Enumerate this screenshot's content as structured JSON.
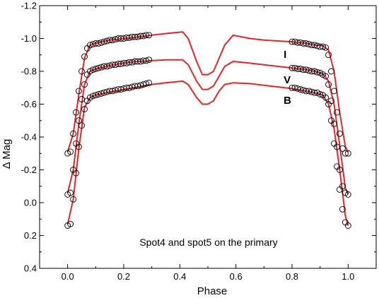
{
  "chart_data": {
    "type": "scatter",
    "title": "",
    "xlabel": "Phase",
    "ylabel": "Δ Mag",
    "xlim": [
      -0.1,
      1.1
    ],
    "ylim": [
      0.4,
      -1.2
    ],
    "y_inverted": true,
    "grid": false,
    "x_ticks": [
      0.0,
      0.2,
      0.4,
      0.6,
      0.8,
      1.0
    ],
    "x_tick_labels": [
      "0.0",
      "0.2",
      "0.4",
      "0.6",
      "0.8",
      "1.0"
    ],
    "y_ticks": [
      -1.2,
      -1.0,
      -0.8,
      -0.6,
      -0.4,
      -0.2,
      0.0,
      0.2,
      0.4
    ],
    "y_tick_labels": [
      "-1.2",
      "-1.0",
      "-0.8",
      "-0.6",
      "-0.4",
      "-0.2",
      "0.0",
      "0.2",
      "0.4"
    ],
    "annotation": "Spot4 and spot5 on the primary",
    "observed_color": "#000000",
    "model_color": "#ee2222",
    "series": [
      {
        "name": "I",
        "observed": {
          "x": [
            0.0,
            0.01,
            0.02,
            0.03,
            0.04,
            0.05,
            0.06,
            0.07,
            0.08,
            0.09,
            0.1,
            0.11,
            0.12,
            0.13,
            0.14,
            0.15,
            0.16,
            0.17,
            0.18,
            0.19,
            0.2,
            0.21,
            0.22,
            0.23,
            0.24,
            0.25,
            0.26,
            0.27,
            0.28,
            0.29,
            0.8,
            0.81,
            0.82,
            0.83,
            0.84,
            0.85,
            0.86,
            0.87,
            0.88,
            0.89,
            0.9,
            0.91,
            0.92,
            0.93,
            0.94,
            0.95,
            0.96,
            0.97,
            0.98,
            0.99,
            1.0
          ],
          "y": [
            -0.3,
            -0.31,
            -0.42,
            -0.55,
            -0.68,
            -0.8,
            -0.89,
            -0.94,
            -0.96,
            -0.965,
            -0.97,
            -0.97,
            -0.975,
            -0.98,
            -0.985,
            -0.99,
            -0.99,
            -0.995,
            -1.0,
            -1.0,
            -1.0,
            -1.005,
            -1.005,
            -1.01,
            -1.01,
            -1.01,
            -1.015,
            -1.015,
            -1.02,
            -1.02,
            -0.98,
            -0.98,
            -0.975,
            -0.975,
            -0.97,
            -0.97,
            -0.965,
            -0.96,
            -0.96,
            -0.955,
            -0.95,
            -0.95,
            -0.945,
            -0.9,
            -0.8,
            -0.68,
            -0.55,
            -0.42,
            -0.33,
            -0.3,
            -0.3
          ]
        },
        "model": {
          "x": [
            0.0,
            0.02,
            0.04,
            0.06,
            0.08,
            0.1,
            0.15,
            0.2,
            0.25,
            0.3,
            0.35,
            0.41,
            0.43,
            0.46,
            0.48,
            0.5,
            0.52,
            0.54,
            0.56,
            0.59,
            0.65,
            0.7,
            0.75,
            0.8,
            0.85,
            0.88,
            0.91,
            0.93,
            0.95,
            0.97,
            0.99,
            1.0
          ],
          "y": [
            -0.31,
            -0.42,
            -0.66,
            -0.88,
            -0.96,
            -0.97,
            -0.99,
            -1.0,
            -1.01,
            -1.02,
            -1.03,
            -1.04,
            -1.0,
            -0.86,
            -0.78,
            -0.78,
            -0.8,
            -0.88,
            -0.96,
            -1.02,
            -1.0,
            -0.99,
            -0.985,
            -0.98,
            -0.97,
            -0.96,
            -0.955,
            -0.93,
            -0.8,
            -0.55,
            -0.34,
            -0.31
          ]
        }
      },
      {
        "name": "V",
        "observed": {
          "x": [
            0.0,
            0.01,
            0.02,
            0.03,
            0.04,
            0.05,
            0.06,
            0.07,
            0.08,
            0.09,
            0.1,
            0.11,
            0.12,
            0.13,
            0.14,
            0.15,
            0.16,
            0.17,
            0.18,
            0.19,
            0.2,
            0.21,
            0.22,
            0.23,
            0.24,
            0.25,
            0.26,
            0.27,
            0.28,
            0.29,
            0.8,
            0.81,
            0.82,
            0.83,
            0.84,
            0.85,
            0.86,
            0.87,
            0.88,
            0.89,
            0.9,
            0.91,
            0.92,
            0.93,
            0.94,
            0.95,
            0.96,
            0.97,
            0.98,
            0.99,
            1.0
          ],
          "y": [
            -0.05,
            -0.06,
            -0.2,
            -0.36,
            -0.5,
            -0.63,
            -0.72,
            -0.78,
            -0.8,
            -0.81,
            -0.815,
            -0.82,
            -0.825,
            -0.83,
            -0.83,
            -0.835,
            -0.84,
            -0.84,
            -0.845,
            -0.845,
            -0.85,
            -0.85,
            -0.855,
            -0.855,
            -0.86,
            -0.86,
            -0.86,
            -0.865,
            -0.865,
            -0.87,
            -0.82,
            -0.82,
            -0.815,
            -0.815,
            -0.81,
            -0.81,
            -0.805,
            -0.8,
            -0.8,
            -0.795,
            -0.79,
            -0.78,
            -0.77,
            -0.72,
            -0.62,
            -0.48,
            -0.34,
            -0.2,
            -0.1,
            -0.06,
            -0.05
          ]
        },
        "model": {
          "x": [
            0.0,
            0.02,
            0.04,
            0.06,
            0.08,
            0.1,
            0.15,
            0.2,
            0.25,
            0.3,
            0.35,
            0.41,
            0.43,
            0.46,
            0.48,
            0.5,
            0.52,
            0.54,
            0.56,
            0.59,
            0.65,
            0.7,
            0.75,
            0.8,
            0.85,
            0.88,
            0.91,
            0.93,
            0.95,
            0.97,
            0.99,
            1.0
          ],
          "y": [
            -0.06,
            -0.2,
            -0.48,
            -0.72,
            -0.8,
            -0.815,
            -0.835,
            -0.85,
            -0.86,
            -0.865,
            -0.87,
            -0.87,
            -0.84,
            -0.74,
            -0.69,
            -0.69,
            -0.71,
            -0.77,
            -0.83,
            -0.86,
            -0.85,
            -0.84,
            -0.83,
            -0.82,
            -0.81,
            -0.8,
            -0.785,
            -0.74,
            -0.6,
            -0.35,
            -0.09,
            -0.05
          ]
        }
      },
      {
        "name": "B",
        "observed": {
          "x": [
            0.0,
            0.01,
            0.02,
            0.03,
            0.04,
            0.05,
            0.06,
            0.07,
            0.08,
            0.09,
            0.1,
            0.11,
            0.12,
            0.13,
            0.14,
            0.15,
            0.16,
            0.17,
            0.18,
            0.19,
            0.2,
            0.21,
            0.22,
            0.23,
            0.24,
            0.25,
            0.26,
            0.27,
            0.28,
            0.29,
            0.8,
            0.81,
            0.82,
            0.83,
            0.84,
            0.85,
            0.86,
            0.87,
            0.88,
            0.89,
            0.9,
            0.91,
            0.92,
            0.93,
            0.94,
            0.95,
            0.96,
            0.97,
            0.98,
            0.99,
            1.0
          ],
          "y": [
            0.14,
            0.13,
            -0.02,
            -0.18,
            -0.34,
            -0.47,
            -0.57,
            -0.62,
            -0.64,
            -0.65,
            -0.655,
            -0.66,
            -0.665,
            -0.67,
            -0.675,
            -0.68,
            -0.68,
            -0.685,
            -0.69,
            -0.69,
            -0.695,
            -0.7,
            -0.7,
            -0.705,
            -0.71,
            -0.71,
            -0.715,
            -0.72,
            -0.725,
            -0.73,
            -0.7,
            -0.7,
            -0.695,
            -0.69,
            -0.685,
            -0.68,
            -0.68,
            -0.675,
            -0.67,
            -0.67,
            -0.66,
            -0.655,
            -0.64,
            -0.6,
            -0.5,
            -0.36,
            -0.22,
            -0.08,
            0.04,
            0.12,
            0.14
          ]
        },
        "model": {
          "x": [
            0.0,
            0.02,
            0.04,
            0.06,
            0.08,
            0.1,
            0.15,
            0.2,
            0.25,
            0.3,
            0.35,
            0.41,
            0.43,
            0.46,
            0.48,
            0.5,
            0.52,
            0.54,
            0.56,
            0.59,
            0.65,
            0.7,
            0.75,
            0.8,
            0.85,
            0.88,
            0.91,
            0.93,
            0.95,
            0.97,
            0.99,
            1.0
          ],
          "y": [
            0.13,
            -0.02,
            -0.33,
            -0.58,
            -0.64,
            -0.655,
            -0.675,
            -0.69,
            -0.705,
            -0.72,
            -0.73,
            -0.74,
            -0.72,
            -0.64,
            -0.6,
            -0.6,
            -0.62,
            -0.68,
            -0.72,
            -0.73,
            -0.725,
            -0.715,
            -0.705,
            -0.695,
            -0.68,
            -0.67,
            -0.655,
            -0.6,
            -0.45,
            -0.2,
            0.08,
            0.14
          ]
        }
      }
    ]
  }
}
